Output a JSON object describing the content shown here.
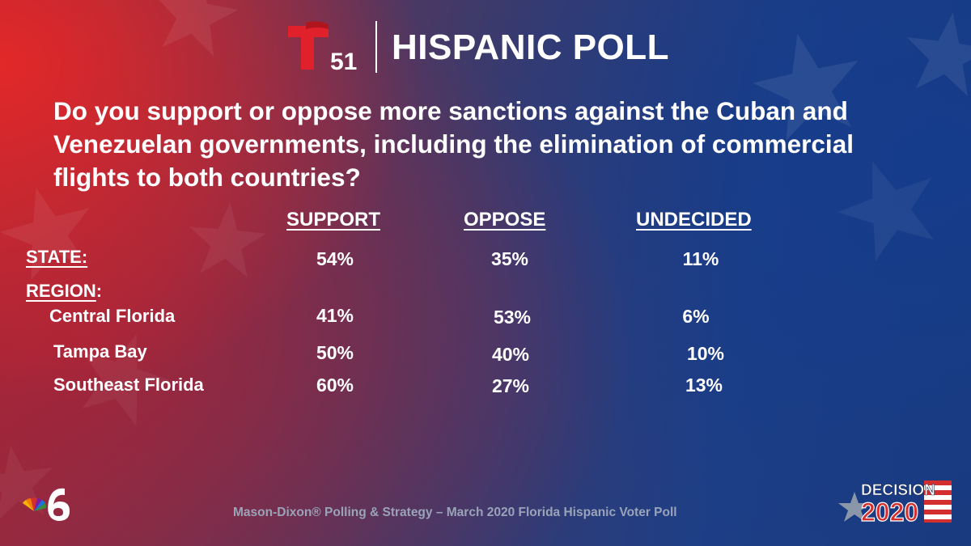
{
  "header": {
    "logo_number": "51",
    "title": "HISPANIC POLL"
  },
  "question": "Do you support or oppose more sanctions against the Cuban and Venezuelan governments, including the elimination of commercial flights to both countries?",
  "table": {
    "columns": [
      "SUPPORT",
      "OPPOSE",
      "UNDECIDED"
    ],
    "state_label": "STATE:",
    "state_values": [
      "54%",
      "35%",
      "11%"
    ],
    "region_label": "REGION",
    "region_colon": ":",
    "regions": [
      {
        "name": "Central Florida",
        "values": [
          "41%",
          "53%",
          "6%"
        ]
      },
      {
        "name": "Tampa Bay",
        "values": [
          "50%",
          "40%",
          "10%"
        ]
      },
      {
        "name": "Southeast Florida",
        "values": [
          "60%",
          "27%",
          "13%"
        ]
      }
    ]
  },
  "footer": {
    "source": "Mason-Dixon® Polling & Strategy – March 2020 Florida Hispanic Voter Poll"
  },
  "badges": {
    "decision_word": "DECISION",
    "decision_year": "2020"
  },
  "colors": {
    "telemundo_red": "#e0202a",
    "accent_blue": "#1d3e86",
    "footer_gray": "#9aa3b8"
  }
}
